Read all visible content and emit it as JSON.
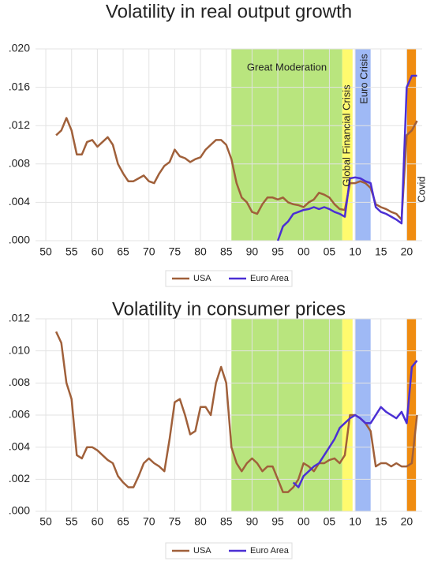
{
  "chart_data": [
    {
      "type": "line",
      "title": "Volatility in real output growth",
      "x": [
        1952,
        1953,
        1954,
        1955,
        1956,
        1957,
        1958,
        1959,
        1960,
        1961,
        1962,
        1963,
        1964,
        1965,
        1966,
        1967,
        1968,
        1969,
        1970,
        1971,
        1972,
        1973,
        1974,
        1975,
        1976,
        1977,
        1978,
        1979,
        1980,
        1981,
        1982,
        1983,
        1984,
        1985,
        1986,
        1987,
        1988,
        1989,
        1990,
        1991,
        1992,
        1993,
        1994,
        1995,
        1996,
        1997,
        1998,
        1999,
        2000,
        2001,
        2002,
        2003,
        2004,
        2005,
        2006,
        2007,
        2008,
        2009,
        2010,
        2011,
        2012,
        2013,
        2014,
        2015,
        2016,
        2017,
        2018,
        2019,
        2020,
        2021,
        2022
      ],
      "series": [
        {
          "name": "USA",
          "color": "#a0603a",
          "values": [
            0.011,
            0.0115,
            0.0128,
            0.0115,
            0.009,
            0.009,
            0.0103,
            0.0105,
            0.0098,
            0.0103,
            0.0108,
            0.01,
            0.008,
            0.007,
            0.0062,
            0.0062,
            0.0065,
            0.0068,
            0.0062,
            0.006,
            0.007,
            0.0078,
            0.0082,
            0.0095,
            0.0088,
            0.0086,
            0.0082,
            0.0085,
            0.0087,
            0.0095,
            0.01,
            0.0105,
            0.0105,
            0.01,
            0.0085,
            0.006,
            0.0045,
            0.004,
            0.003,
            0.0028,
            0.0038,
            0.0045,
            0.0045,
            0.0043,
            0.0045,
            0.004,
            0.0038,
            0.0037,
            0.0035,
            0.004,
            0.0043,
            0.005,
            0.0048,
            0.0045,
            0.0038,
            0.0033,
            0.0032,
            0.006,
            0.006,
            0.0062,
            0.006,
            0.0055,
            0.0038,
            0.0035,
            0.0033,
            0.003,
            0.0028,
            0.0022,
            0.011,
            0.0115,
            0.0125
          ]
        },
        {
          "name": "Euro Area",
          "color": "#4b2fd4",
          "values": [
            null,
            null,
            null,
            null,
            null,
            null,
            null,
            null,
            null,
            null,
            null,
            null,
            null,
            null,
            null,
            null,
            null,
            null,
            null,
            null,
            null,
            null,
            null,
            null,
            null,
            null,
            null,
            null,
            null,
            null,
            null,
            null,
            null,
            null,
            null,
            null,
            null,
            null,
            null,
            null,
            null,
            null,
            null,
            0.0,
            0.0015,
            0.002,
            0.0028,
            0.003,
            0.0032,
            0.0033,
            0.0035,
            0.0033,
            0.0035,
            0.0033,
            0.003,
            0.0028,
            0.0025,
            0.0065,
            0.0066,
            0.0065,
            0.0062,
            0.006,
            0.0035,
            0.003,
            0.0028,
            0.0025,
            0.0022,
            0.0018,
            0.016,
            0.0172,
            0.0172
          ]
        }
      ],
      "periods": [
        {
          "label": "Great Moderation",
          "start": 1986,
          "end": 2007.5,
          "color": "#b9e57e"
        },
        {
          "label": "Global Financial Crisis",
          "start": 2007.5,
          "end": 2009.5,
          "color": "#fffa6e"
        },
        {
          "label": "Euro Crisis",
          "start": 2010,
          "end": 2013,
          "color": "#9fb9f5"
        },
        {
          "label": "Covid",
          "start": 2020,
          "end": 2021.8,
          "color": "#f08c10"
        }
      ],
      "xlim": [
        1948,
        2023
      ],
      "xticks": [
        {
          "value": 1950,
          "label": "50"
        },
        {
          "value": 1955,
          "label": "55"
        },
        {
          "value": 1960,
          "label": "60"
        },
        {
          "value": 1965,
          "label": "65"
        },
        {
          "value": 1970,
          "label": "70"
        },
        {
          "value": 1975,
          "label": "75"
        },
        {
          "value": 1980,
          "label": "80"
        },
        {
          "value": 1985,
          "label": "85"
        },
        {
          "value": 1990,
          "label": "90"
        },
        {
          "value": 1995,
          "label": "95"
        },
        {
          "value": 2000,
          "label": "00"
        },
        {
          "value": 2005,
          "label": "05"
        },
        {
          "value": 2010,
          "label": "10"
        },
        {
          "value": 2015,
          "label": "15"
        },
        {
          "value": 2020,
          "label": "20"
        }
      ],
      "ylim": [
        0,
        0.02
      ],
      "yticks": [
        {
          "value": 0,
          "label": ".000"
        },
        {
          "value": 0.004,
          "label": ".004"
        },
        {
          "value": 0.008,
          "label": ".008"
        },
        {
          "value": 0.012,
          "label": ".012"
        },
        {
          "value": 0.016,
          "label": ".016"
        },
        {
          "value": 0.02,
          "label": ".020"
        }
      ],
      "grid": true,
      "legend": "bottom"
    },
    {
      "type": "line",
      "title": "Volatility in consumer prices",
      "x": [
        1952,
        1953,
        1954,
        1955,
        1956,
        1957,
        1958,
        1959,
        1960,
        1961,
        1962,
        1963,
        1964,
        1965,
        1966,
        1967,
        1968,
        1969,
        1970,
        1971,
        1972,
        1973,
        1974,
        1975,
        1976,
        1977,
        1978,
        1979,
        1980,
        1981,
        1982,
        1983,
        1984,
        1985,
        1986,
        1987,
        1988,
        1989,
        1990,
        1991,
        1992,
        1993,
        1994,
        1995,
        1996,
        1997,
        1998,
        1999,
        2000,
        2001,
        2002,
        2003,
        2004,
        2005,
        2006,
        2007,
        2008,
        2009,
        2010,
        2011,
        2012,
        2013,
        2014,
        2015,
        2016,
        2017,
        2018,
        2019,
        2020,
        2021,
        2022
      ],
      "series": [
        {
          "name": "USA",
          "color": "#a0603a",
          "values": [
            0.0112,
            0.0105,
            0.008,
            0.007,
            0.0035,
            0.0033,
            0.004,
            0.004,
            0.0038,
            0.0035,
            0.0032,
            0.003,
            0.0022,
            0.0018,
            0.0015,
            0.0015,
            0.0022,
            0.003,
            0.0033,
            0.003,
            0.0028,
            0.0025,
            0.0045,
            0.0068,
            0.007,
            0.006,
            0.0048,
            0.005,
            0.0065,
            0.0065,
            0.006,
            0.008,
            0.009,
            0.008,
            0.004,
            0.003,
            0.0025,
            0.003,
            0.0033,
            0.003,
            0.0025,
            0.0028,
            0.0028,
            0.002,
            0.0012,
            0.0012,
            0.0015,
            0.002,
            0.003,
            0.0028,
            0.0025,
            0.003,
            0.003,
            0.0032,
            0.0033,
            0.003,
            0.0035,
            0.006,
            0.006,
            0.0058,
            0.0055,
            0.005,
            0.0028,
            0.003,
            0.003,
            0.0028,
            0.003,
            0.0028,
            0.0028,
            0.003,
            0.006
          ]
        },
        {
          "name": "Euro Area",
          "color": "#4b2fd4",
          "values": [
            null,
            null,
            null,
            null,
            null,
            null,
            null,
            null,
            null,
            null,
            null,
            null,
            null,
            null,
            null,
            null,
            null,
            null,
            null,
            null,
            null,
            null,
            null,
            null,
            null,
            null,
            null,
            null,
            null,
            null,
            null,
            null,
            null,
            null,
            null,
            null,
            null,
            null,
            null,
            null,
            null,
            null,
            null,
            null,
            null,
            null,
            0.0018,
            0.0015,
            0.0022,
            0.0025,
            0.0028,
            0.003,
            0.0035,
            0.004,
            0.0045,
            0.0052,
            0.0055,
            0.0058,
            0.006,
            0.0058,
            0.0055,
            0.0055,
            0.006,
            0.0065,
            0.0062,
            0.006,
            0.0058,
            0.0062,
            0.0055,
            0.009,
            0.0094
          ]
        }
      ],
      "periods": [
        {
          "start": 1986,
          "end": 2007.5,
          "color": "#b9e57e"
        },
        {
          "start": 2007.5,
          "end": 2009.5,
          "color": "#fffa6e"
        },
        {
          "start": 2010,
          "end": 2013,
          "color": "#9fb9f5"
        },
        {
          "start": 2020,
          "end": 2021.8,
          "color": "#f08c10"
        }
      ],
      "xlim": [
        1948,
        2023
      ],
      "xticks": [
        {
          "value": 1950,
          "label": "50"
        },
        {
          "value": 1955,
          "label": "55"
        },
        {
          "value": 1960,
          "label": "60"
        },
        {
          "value": 1965,
          "label": "65"
        },
        {
          "value": 1970,
          "label": "70"
        },
        {
          "value": 1975,
          "label": "75"
        },
        {
          "value": 1980,
          "label": "80"
        },
        {
          "value": 1985,
          "label": "85"
        },
        {
          "value": 1990,
          "label": "90"
        },
        {
          "value": 1995,
          "label": "95"
        },
        {
          "value": 2000,
          "label": "00"
        },
        {
          "value": 2005,
          "label": "05"
        },
        {
          "value": 2010,
          "label": "10"
        },
        {
          "value": 2015,
          "label": "15"
        },
        {
          "value": 2020,
          "label": "20"
        }
      ],
      "ylim": [
        0,
        0.012
      ],
      "yticks": [
        {
          "value": 0,
          "label": ".000"
        },
        {
          "value": 0.002,
          "label": ".002"
        },
        {
          "value": 0.004,
          "label": ".004"
        },
        {
          "value": 0.006,
          "label": ".006"
        },
        {
          "value": 0.008,
          "label": ".008"
        },
        {
          "value": 0.01,
          "label": ".010"
        },
        {
          "value": 0.012,
          "label": ".012"
        }
      ],
      "grid": true,
      "legend": "bottom"
    }
  ]
}
